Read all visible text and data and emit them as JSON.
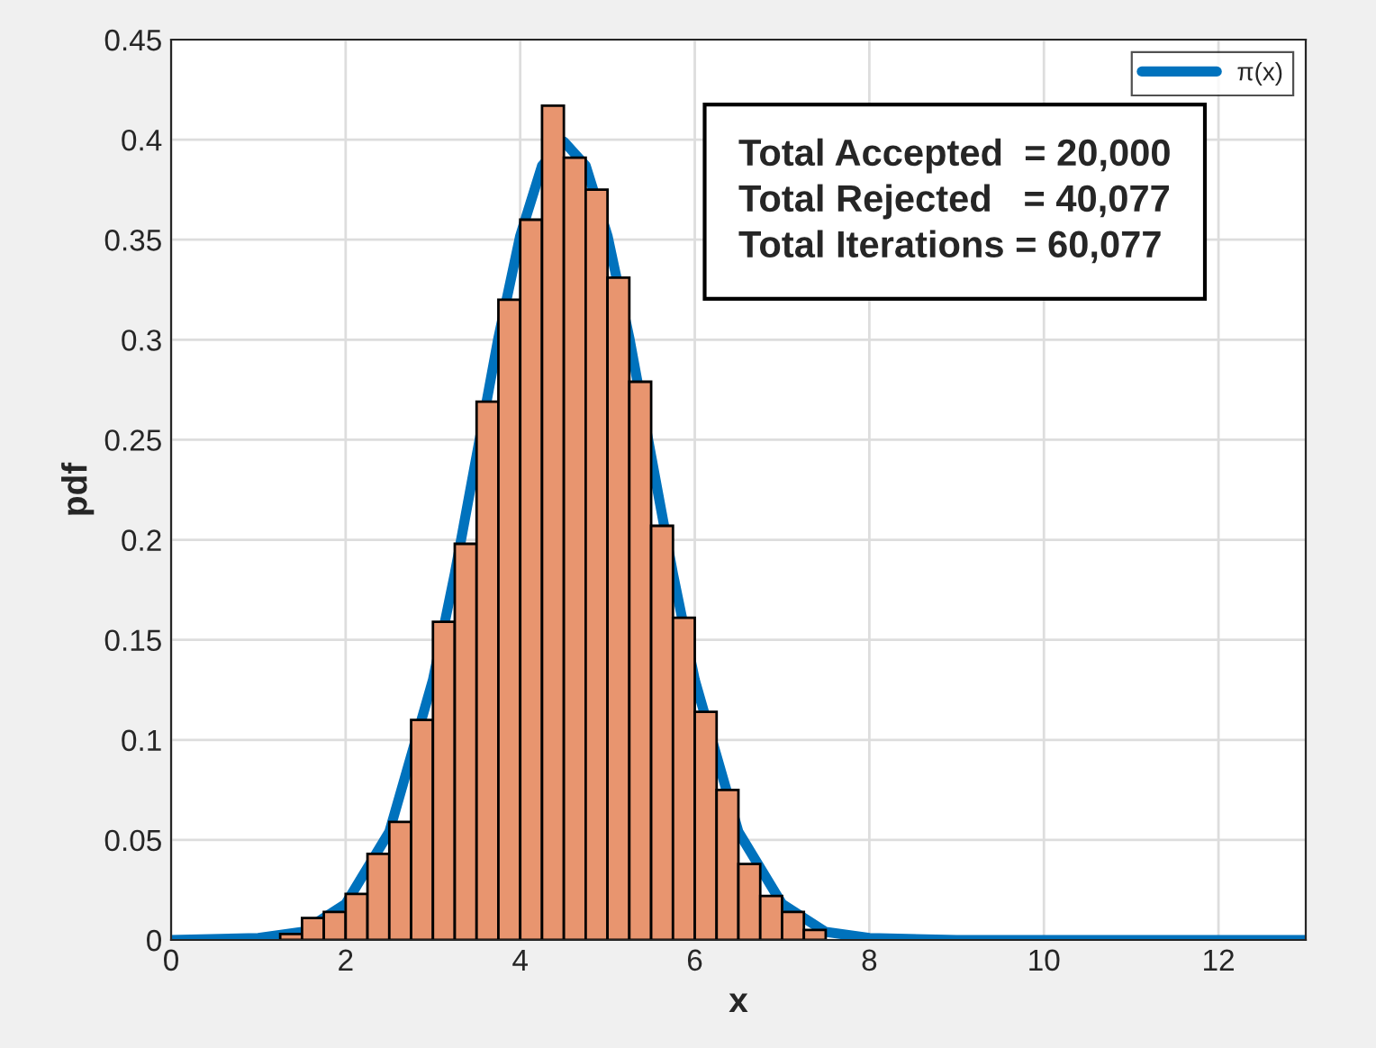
{
  "chart_data": {
    "type": "histogram",
    "xlabel": "x",
    "ylabel": "pdf",
    "bins": [
      1.25,
      1.5,
      1.75,
      2.0,
      2.25,
      2.5,
      2.75,
      3.0,
      3.25,
      3.5,
      3.75,
      4.0,
      4.25,
      4.5,
      4.75,
      5.0,
      5.25,
      5.5,
      5.75,
      6.0,
      6.25,
      6.5,
      6.75,
      7.0,
      7.25,
      7.5
    ],
    "values": [
      0.003,
      0.011,
      0.014,
      0.023,
      0.043,
      0.059,
      0.11,
      0.159,
      0.198,
      0.269,
      0.32,
      0.36,
      0.417,
      0.391,
      0.375,
      0.331,
      0.279,
      0.207,
      0.161,
      0.114,
      0.075,
      0.038,
      0.022,
      0.014,
      0.005
    ],
    "color": "#e8956f",
    "series": [
      {
        "type": "line",
        "name": "π(x)",
        "color": "#0072bd",
        "x": [
          0,
          1,
          1.5,
          2,
          2.5,
          3,
          3.25,
          3.5,
          3.75,
          4,
          4.25,
          4.5,
          4.75,
          5,
          5.25,
          5.5,
          5.75,
          6,
          6.5,
          7,
          7.5,
          8,
          9,
          13
        ],
        "values": [
          0,
          0.001,
          0.004,
          0.018,
          0.054,
          0.13,
          0.183,
          0.242,
          0.301,
          0.352,
          0.387,
          0.399,
          0.387,
          0.352,
          0.301,
          0.242,
          0.183,
          0.13,
          0.054,
          0.018,
          0.004,
          0.001,
          0,
          0
        ]
      }
    ],
    "annotations": [
      "Total Accepted  = 20,000",
      "Total Rejected   = 40,077",
      "Total Iterations = 60,077"
    ],
    "xlim": [
      0,
      13
    ],
    "xticks": [
      0,
      2,
      4,
      6,
      8,
      10,
      12
    ],
    "ylim": [
      0,
      0.45
    ],
    "yticks": [
      0,
      0.05,
      0.1,
      0.15,
      0.2,
      0.25,
      0.3,
      0.35,
      0.4,
      0.45
    ],
    "grid": true,
    "legend": "top right"
  }
}
